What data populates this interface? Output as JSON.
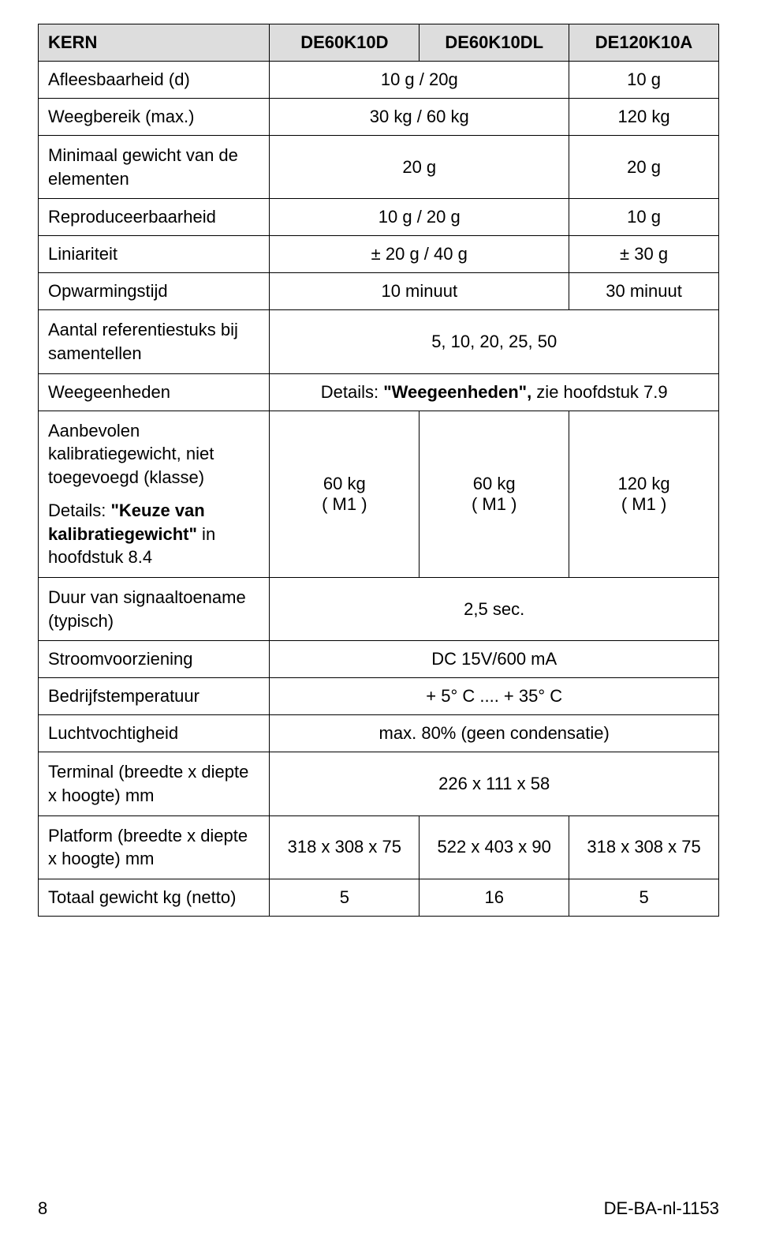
{
  "header": {
    "kern": "KERN",
    "col1": "DE60K10D",
    "col2": "DE60K10DL",
    "col3": "DE120K10A"
  },
  "rows": {
    "afleesbaarheid": {
      "label": "Afleesbaarheid (d)",
      "v12": "10 g / 20g",
      "v3": "10 g"
    },
    "weegbereik": {
      "label": "Weegbereik (max.)",
      "v12": "30 kg / 60 kg",
      "v3": "120 kg"
    },
    "minimaal": {
      "label": "Minimaal gewicht van de elementen",
      "v12": "20 g",
      "v3": "20 g"
    },
    "reproduceer": {
      "label": "Reproduceerbaarheid",
      "v12": "10 g / 20 g",
      "v3": "10 g"
    },
    "liniariteit": {
      "label": "Liniariteit",
      "v12": "± 20 g / 40 g",
      "v3": "± 30 g"
    },
    "opwarmingstijd": {
      "label": "Opwarmingstijd",
      "v12": "10 minuut",
      "v3": "30 minuut"
    },
    "aantalref": {
      "label": "Aantal referentiestuks bij samentellen",
      "v123": "5, 10, 20, 25, 50"
    },
    "weegeenheden": {
      "label": "Weegeenheden",
      "pref": "Details: ",
      "bold": "\"Weegeenheden\",",
      "suf": " zie hoofdstuk 7.9"
    },
    "aanbevolen": {
      "label1": "Aanbevolen kalibratiegewicht, niet toegevoegd (klasse)",
      "label2a": "Details: ",
      "label2b": "\"Keuze van kalibratiegewicht\"",
      "label2c": " in hoofdstuk 8.4",
      "v1a": "60 kg",
      "v1b": "( M1 )",
      "v2a": "60 kg",
      "v2b": "( M1 )",
      "v3a": "120 kg",
      "v3b": "( M1 )"
    },
    "duur": {
      "label": "Duur van signaaltoename (typisch)",
      "v123": "2,5 sec."
    },
    "stroom": {
      "label": "Stroomvoorziening",
      "v123": "DC 15V/600 mA"
    },
    "bedrijfstemp": {
      "label": "Bedrijfstemperatuur",
      "v123": "+ 5° C .... + 35° C"
    },
    "lucht": {
      "label": "Luchtvochtigheid",
      "v123": "max. 80% (geen condensatie)"
    },
    "terminal": {
      "label": "Terminal (breedte x diepte x hoogte) mm",
      "v123": "226 x 111 x 58"
    },
    "platform": {
      "label": "Platform (breedte x diepte x hoogte) mm",
      "v1": "318 x 308 x 75",
      "v2": "522 x 403 x 90",
      "v3": "318 x 308 x 75"
    },
    "totaal": {
      "label": "Totaal gewicht kg (netto)",
      "v1": "5",
      "v2": "16",
      "v3": "5"
    }
  },
  "footer": {
    "page": "8",
    "ref": "DE-BA-nl-1153"
  }
}
